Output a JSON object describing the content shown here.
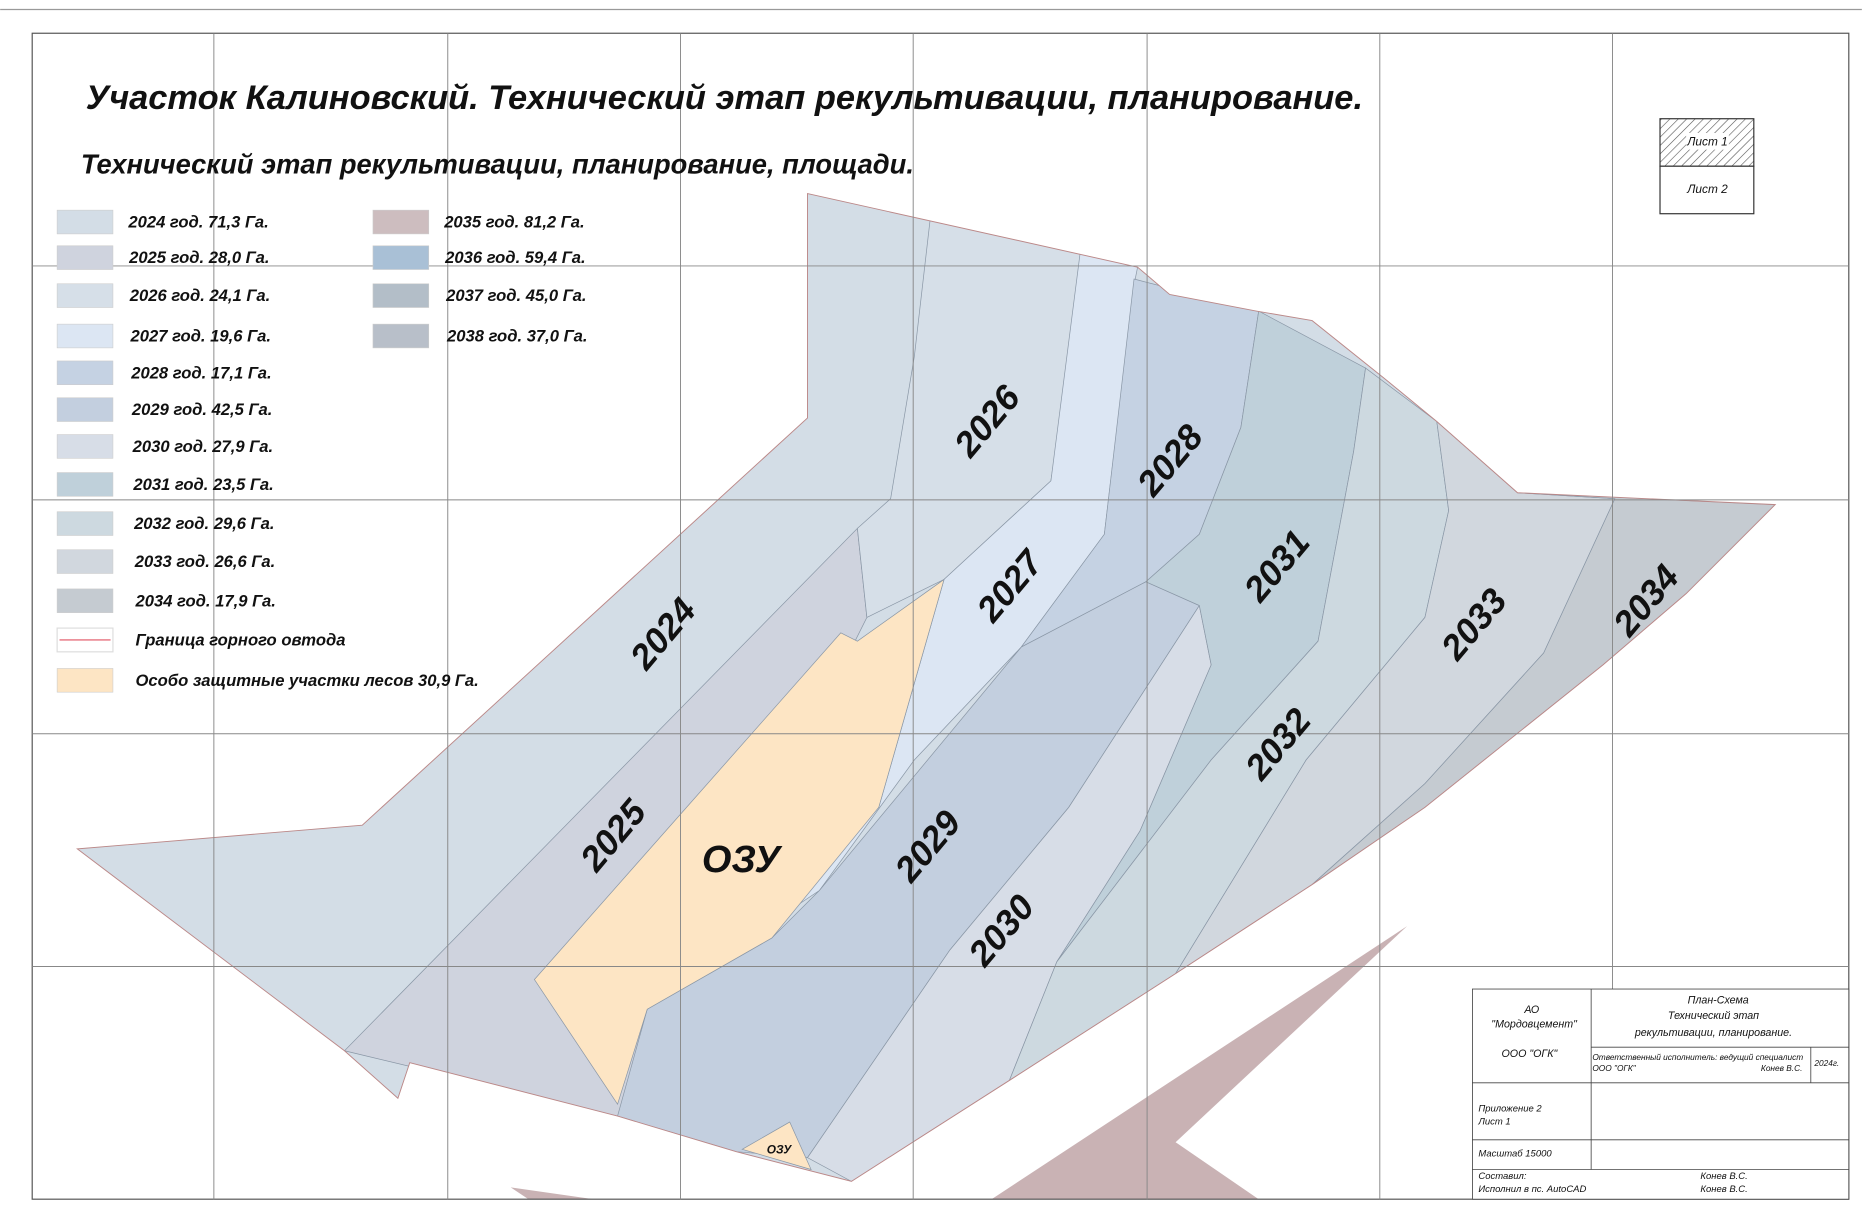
{
  "title": "Участок Калиновский. Технический этап рекультивации, планирование.",
  "subtitle": "Технический этап рекультивации, планирование, площади.",
  "legend": [
    {
      "label": "2024 год. 71,3 Га.",
      "color": "#d3dde6"
    },
    {
      "label": "2025 год. 28,0 Га.",
      "color": "#cfd3de"
    },
    {
      "label": "2026 год. 24,1 Га.",
      "color": "#d6dfe8"
    },
    {
      "label": "2027 год. 19,6 Га.",
      "color": "#dce6f3"
    },
    {
      "label": "2028 год. 17,1 Га.",
      "color": "#c5d2e3"
    },
    {
      "label": "2029 год. 42,5 Га.",
      "color": "#c3cfdf"
    },
    {
      "label": "2030 год. 27,9 Га.",
      "color": "#d7dde7"
    },
    {
      "label": "2031 год. 23,5 Га.",
      "color": "#bfd0da"
    },
    {
      "label": "2032 год. 29,6 Га.",
      "color": "#cdd9e0"
    },
    {
      "label": "2033 год. 26,6 Га.",
      "color": "#d1d7de"
    },
    {
      "label": "2034 год. 17,9 Га.",
      "color": "#c5cbd1"
    },
    {
      "label": "Граница горного овтода",
      "color": "#e05060",
      "line": true
    },
    {
      "label": "Особо защитные участки лесов 30,9 Га.",
      "color": "#fde5c4"
    },
    {
      "label": "2035 год. 81,2 Га.",
      "color": "#cdbdbf"
    },
    {
      "label": "2036 год. 59,4 Га.",
      "color": "#a9c0d6"
    },
    {
      "label": "2037 год. 45,0 Га.",
      "color": "#b3bec8"
    },
    {
      "label": "2038 год. 37,0 Га.",
      "color": "#b8bfc9"
    }
  ],
  "zones": [
    "2024",
    "2025",
    "2026",
    "2027",
    "2028",
    "2029",
    "2030",
    "2031",
    "2032",
    "2033",
    "2034",
    "ОЗУ",
    "ОЗУ"
  ],
  "sheets": [
    "Лист 1",
    "Лист 2"
  ],
  "title_block": {
    "company": "АО",
    "company_name": "\"Мордовцемент\"",
    "contractor": "ООО \"ОГК\"",
    "doc_title": [
      "План-Схема",
      "Технический этап",
      "рекультивации, планирование."
    ],
    "responsible": "Ответственный исполнитель: ведущий специалист",
    "responsible_org": "ООО \"ОГК\"",
    "responsible_name": "Конев В.С.",
    "year": "2024г.",
    "appendix": "Приложение 2",
    "sheet": "Лист 1",
    "scale": "Масштаб 15000",
    "compiled": "Составил:",
    "executed": "Исполнил в пс. AutoCAD",
    "compiled_name": "Конев В.С.",
    "executed_name": "Конев В.С."
  }
}
